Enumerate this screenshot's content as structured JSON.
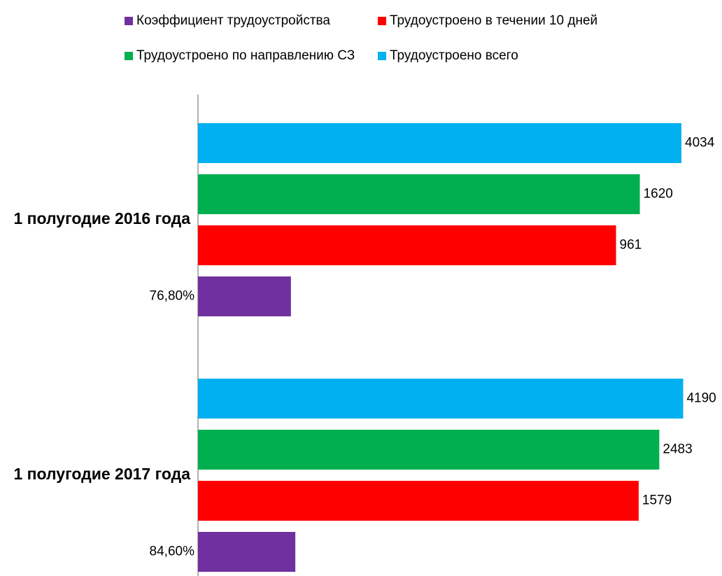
{
  "chart_data": {
    "type": "bar",
    "orientation": "horizontal",
    "log_scale": true,
    "categories": [
      "1 полугодие 2016 года",
      "1 полугодие 2017 года"
    ],
    "series": [
      {
        "name": "Коэффициент трудоустройства",
        "color": "#7030a0",
        "axis": "y2",
        "values": [
          76.8,
          84.6
        ],
        "value_labels": [
          "76,80%",
          "84,60%"
        ]
      },
      {
        "name": "Трудоустроено в течении 10 дней",
        "color": "#ff0000",
        "values": [
          961,
          1579
        ]
      },
      {
        "name": "Трудоустроено по направлению СЗ",
        "color": "#00b050",
        "values": [
          1620,
          2483
        ]
      },
      {
        "name": "Трудоустроено всего",
        "color": "#00b0f0",
        "values": [
          4034,
          4190
        ]
      }
    ],
    "xlim": [
      0.1,
      5000
    ],
    "y2lim": [
      10,
      500000
    ],
    "legend": "top"
  }
}
